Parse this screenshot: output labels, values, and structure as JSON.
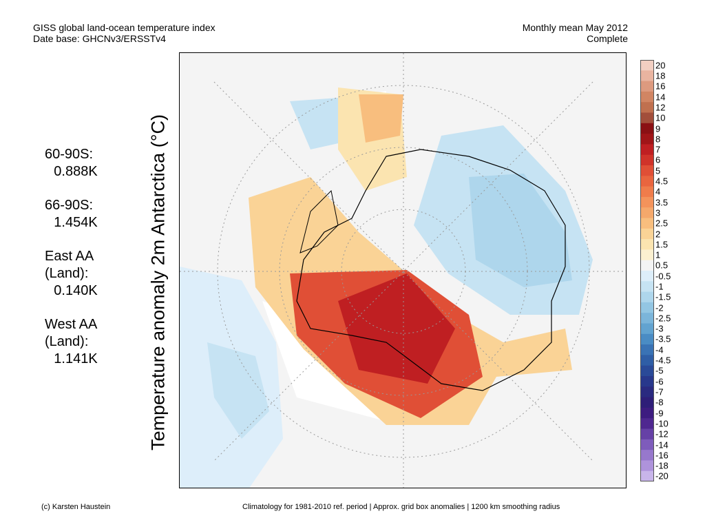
{
  "header": {
    "title_line1": "GISS global land-ocean temperature index",
    "title_line2": "Date base: GHCNv3/ERSSTv4",
    "period_line1": "Monthly mean May 2012",
    "period_line2": "Complete"
  },
  "axis_label": "Temperature anomaly 2m Antarctica (°C)",
  "stats": [
    {
      "label_lines": [
        "60-90S:"
      ],
      "value": "0.888K"
    },
    {
      "label_lines": [
        "66-90S:"
      ],
      "value": "1.454K"
    },
    {
      "label_lines": [
        "East AA",
        "(Land):"
      ],
      "value": "0.140K"
    },
    {
      "label_lines": [
        "West AA",
        "(Land):"
      ],
      "value": "1.141K"
    }
  ],
  "colorbar": {
    "labels": [
      "20",
      "18",
      "16",
      "14",
      "12",
      "10",
      "9",
      "8",
      "7",
      "6",
      "5",
      "4.5",
      "4",
      "3.5",
      "3",
      "2.5",
      "2",
      "1.5",
      "1",
      "0.5",
      "-0.5",
      "-1",
      "-1.5",
      "-2",
      "-2.5",
      "-3",
      "-3.5",
      "-4",
      "-4.5",
      "-5",
      "-6",
      "-7",
      "-8",
      "-9",
      "-10",
      "-12",
      "-14",
      "-16",
      "-18",
      "-20"
    ],
    "colors": [
      "#f2cfc2",
      "#e9b4a0",
      "#dd9a7f",
      "#d18563",
      "#c0704f",
      "#a24e3b",
      "#8a1014",
      "#a01518",
      "#bf1f22",
      "#d0332a",
      "#e04f36",
      "#e9653f",
      "#ef7c4b",
      "#f3935b",
      "#f5a86b",
      "#f8be7e",
      "#fad396",
      "#fbe4b0",
      "#fcf0d0",
      "#f4f4f4",
      "#ddeefa",
      "#c6e3f3",
      "#aed6ec",
      "#93c6e3",
      "#7bb5da",
      "#62a3d0",
      "#4a8cc4",
      "#3a73b5",
      "#2f5ea6",
      "#2a4a98",
      "#28388c",
      "#2a2a80",
      "#2e1e78",
      "#3d1c80",
      "#4f2890",
      "#6641a6",
      "#7e5cbb",
      "#9778cc",
      "#ae93db",
      "#c8b5ea"
    ]
  },
  "footer": {
    "credit": "(c) Karsten Haustein",
    "note": "Climatology for 1981-2010 ref. period | Approx. grid box anomalies | 1200 km smoothing radius"
  }
}
